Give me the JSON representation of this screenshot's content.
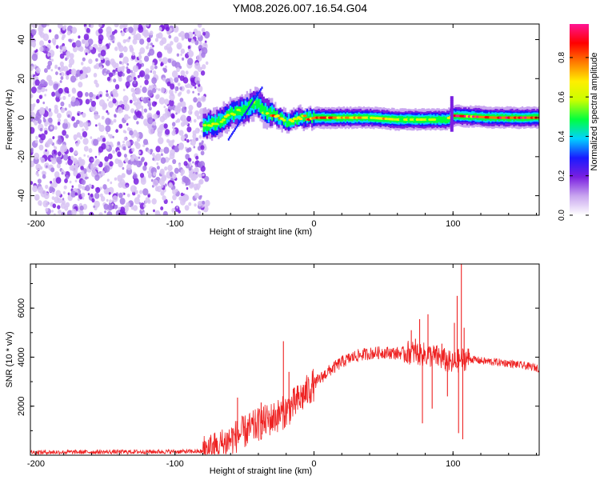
{
  "title": "YM08.2026.007.16.54.G04",
  "chart_data": [
    {
      "type": "heatmap",
      "xlabel": "Height of straight line (km)",
      "ylabel": "Frequency (Hz)",
      "xlim": [
        -204,
        162
      ],
      "ylim": [
        -50,
        48
      ],
      "xticks": [
        -200,
        -100,
        0,
        100
      ],
      "xtick_labels": [
        "-200",
        "-100",
        "0",
        "100"
      ],
      "yticks": [
        -40,
        -20,
        0,
        20,
        40
      ],
      "ytick_labels": [
        "-40",
        "-20",
        "0",
        "20",
        "40"
      ],
      "noise_region_km": [
        -204,
        -80
      ],
      "signal_ridge": [
        {
          "x": -80,
          "f": -4,
          "amp": 0.55
        },
        {
          "x": -70,
          "f": -3,
          "amp": 0.7
        },
        {
          "x": -60,
          "f": 2,
          "amp": 0.6
        },
        {
          "x": -50,
          "f": 4,
          "amp": 0.55
        },
        {
          "x": -42,
          "f": 8,
          "amp": 0.5
        },
        {
          "x": -36,
          "f": 3,
          "amp": 0.6
        },
        {
          "x": -28,
          "f": 1,
          "amp": 0.8
        },
        {
          "x": -20,
          "f": -2,
          "amp": 0.6
        },
        {
          "x": -10,
          "f": 0,
          "amp": 0.7
        },
        {
          "x": 0,
          "f": 0,
          "amp": 0.85
        },
        {
          "x": 20,
          "f": 0,
          "amp": 0.8
        },
        {
          "x": 40,
          "f": 0,
          "amp": 0.7
        },
        {
          "x": 60,
          "f": -1,
          "amp": 0.65
        },
        {
          "x": 80,
          "f": -1,
          "amp": 0.7
        },
        {
          "x": 95,
          "f": -1,
          "amp": 0.5
        },
        {
          "x": 100,
          "f": 1,
          "amp": 0.9
        },
        {
          "x": 130,
          "f": 0,
          "amp": 0.95
        },
        {
          "x": 162,
          "f": 0,
          "amp": 0.95
        }
      ],
      "colorbar": {
        "label": "Normalized spectral amplitude",
        "range": [
          0,
          0.97
        ],
        "ticks": [
          0.0,
          0.2,
          0.4,
          0.6,
          0.8
        ],
        "tick_labels": [
          "0.0",
          "0.2",
          "0.4",
          "0.6",
          "0.8"
        ],
        "colors": [
          "#ffffff",
          "#c9a6ef",
          "#7a1fe0",
          "#1a1aff",
          "#00d2ff",
          "#00ff40",
          "#c8ff00",
          "#ffee00",
          "#ff7a00",
          "#ff0000",
          "#ff1493"
        ]
      }
    },
    {
      "type": "line",
      "color": "#ee2222",
      "xlabel": "Height of straight line (km)",
      "ylabel": "SNR (10 * v/v)",
      "xlim": [
        -204,
        162
      ],
      "ylim": [
        0,
        7800
      ],
      "xticks": [
        -200,
        -100,
        0,
        100
      ],
      "xtick_labels": [
        "-200",
        "-100",
        "0",
        "100"
      ],
      "yticks": [
        2000,
        4000,
        6000
      ],
      "ytick_labels": [
        "2000",
        "4000",
        "6000"
      ],
      "trend": {
        "x": [
          -204,
          -80,
          -70,
          -60,
          -50,
          -40,
          -30,
          -20,
          -10,
          0,
          10,
          20,
          30,
          40,
          50,
          60,
          70,
          80,
          90,
          100,
          105,
          110,
          120,
          140,
          162
        ],
        "y": [
          120,
          150,
          300,
          650,
          950,
          1250,
          1500,
          1800,
          2300,
          2900,
          3400,
          3800,
          4050,
          4150,
          4200,
          4150,
          4200,
          4100,
          4000,
          3700,
          3900,
          3950,
          3850,
          3750,
          3550
        ]
      },
      "spikes": [
        {
          "x": -55,
          "y": 2350
        },
        {
          "x": -38,
          "y": 2150
        },
        {
          "x": -22,
          "y": 4650
        },
        {
          "x": -18,
          "y": 3400
        },
        {
          "x": 70,
          "y": 5100
        },
        {
          "x": 73,
          "y": 4750
        },
        {
          "x": 76,
          "y": 5550
        },
        {
          "x": 78,
          "y": 1300
        },
        {
          "x": 82,
          "y": 5750
        },
        {
          "x": 85,
          "y": 1900
        },
        {
          "x": 92,
          "y": 4550
        },
        {
          "x": 96,
          "y": 2400
        },
        {
          "x": 101,
          "y": 5400
        },
        {
          "x": 103,
          "y": 6500
        },
        {
          "x": 104,
          "y": 900
        },
        {
          "x": 106,
          "y": 7800
        },
        {
          "x": 107,
          "y": 650
        },
        {
          "x": 108,
          "y": 5200
        }
      ]
    }
  ]
}
